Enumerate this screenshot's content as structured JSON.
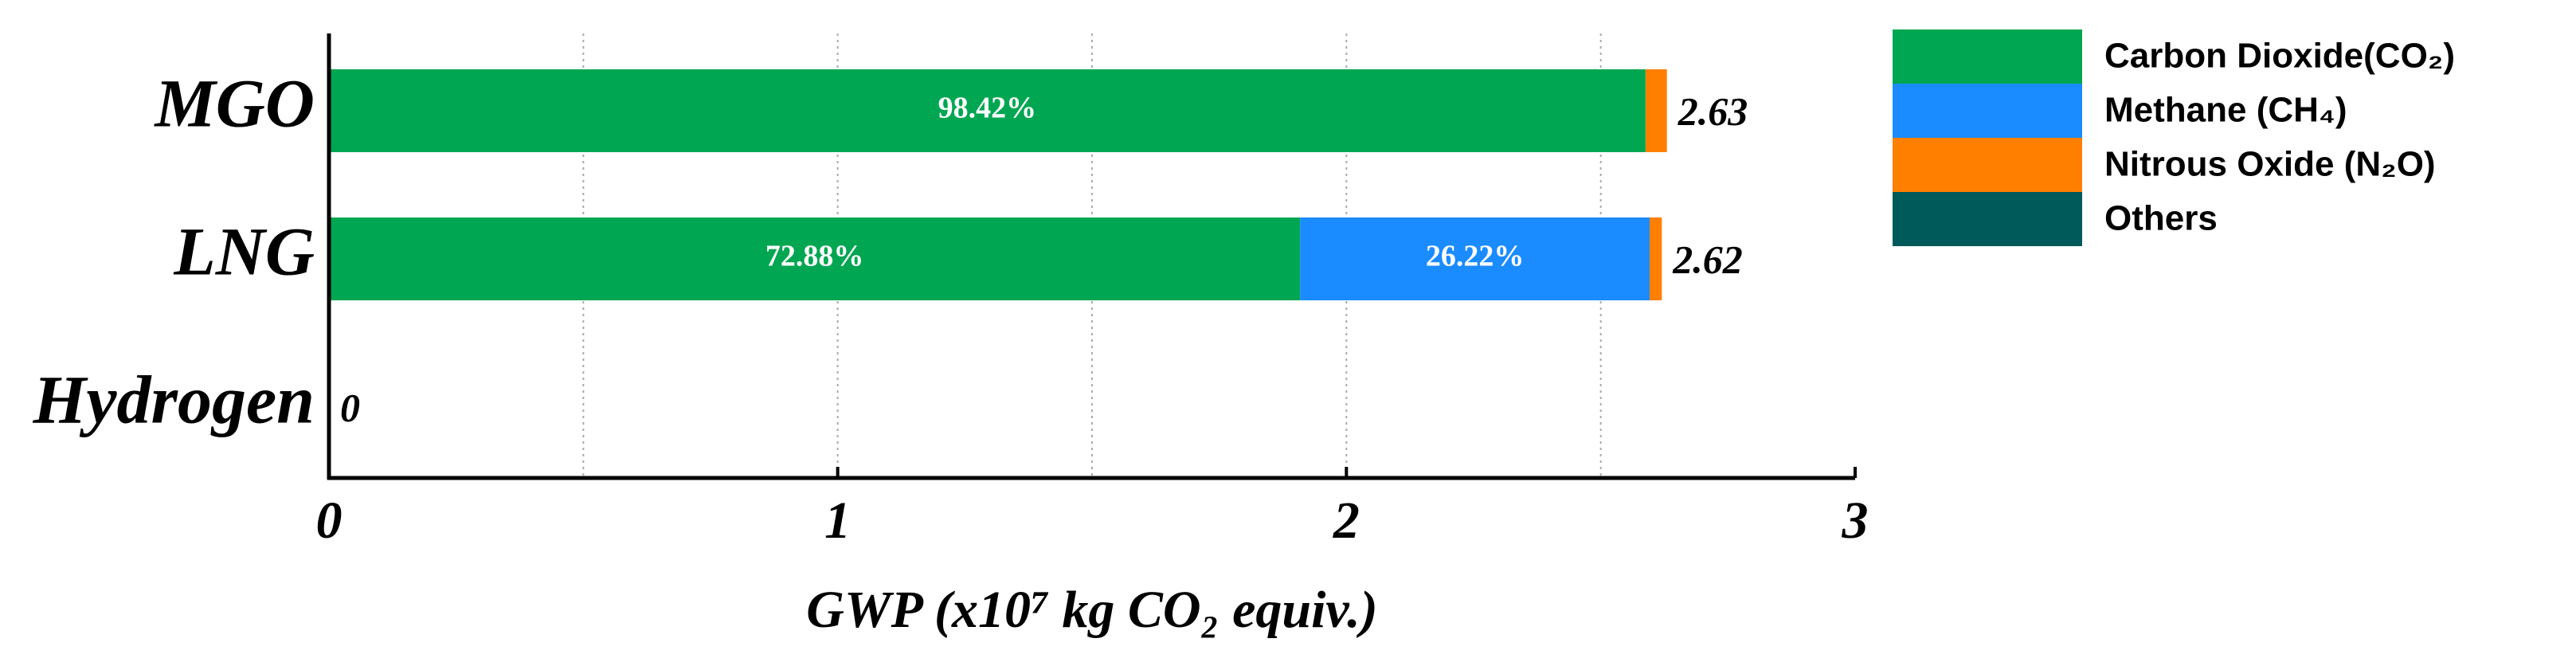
{
  "chart_data": {
    "type": "stacked-bar-horizontal",
    "categories": [
      "MGO",
      "LNG",
      "Hydrogen"
    ],
    "series": [
      {
        "name": "Carbon Dioxide(CO₂)",
        "color": "#00a651",
        "values": [
          2.588,
          1.909,
          0
        ],
        "shares": [
          98.42,
          72.88,
          null
        ],
        "share_labels": [
          "98.42%",
          "72.88%",
          null
        ]
      },
      {
        "name": "Methane (CH₄)",
        "color": "#1a8cff",
        "values": [
          0,
          0.687,
          0
        ],
        "shares": [
          null,
          26.22,
          null
        ],
        "share_labels": [
          null,
          "26.22%",
          null
        ]
      },
      {
        "name": "Nitrous Oxide (N₂O)",
        "color": "#ff7f00",
        "values": [
          0.042,
          0.024,
          0
        ]
      },
      {
        "name": "Others",
        "color": "#005a5a",
        "values": [
          0,
          0,
          0
        ]
      }
    ],
    "totals": [
      2.63,
      2.62,
      0
    ],
    "xlim": [
      0,
      3
    ],
    "xticks": [
      0,
      1,
      2,
      3
    ],
    "xminor": [
      0.5,
      1.5,
      2.5
    ],
    "grid": true,
    "xlabel": "GWP (x10⁷ kg CO₂ equiv.)",
    "legend": "upper right"
  }
}
